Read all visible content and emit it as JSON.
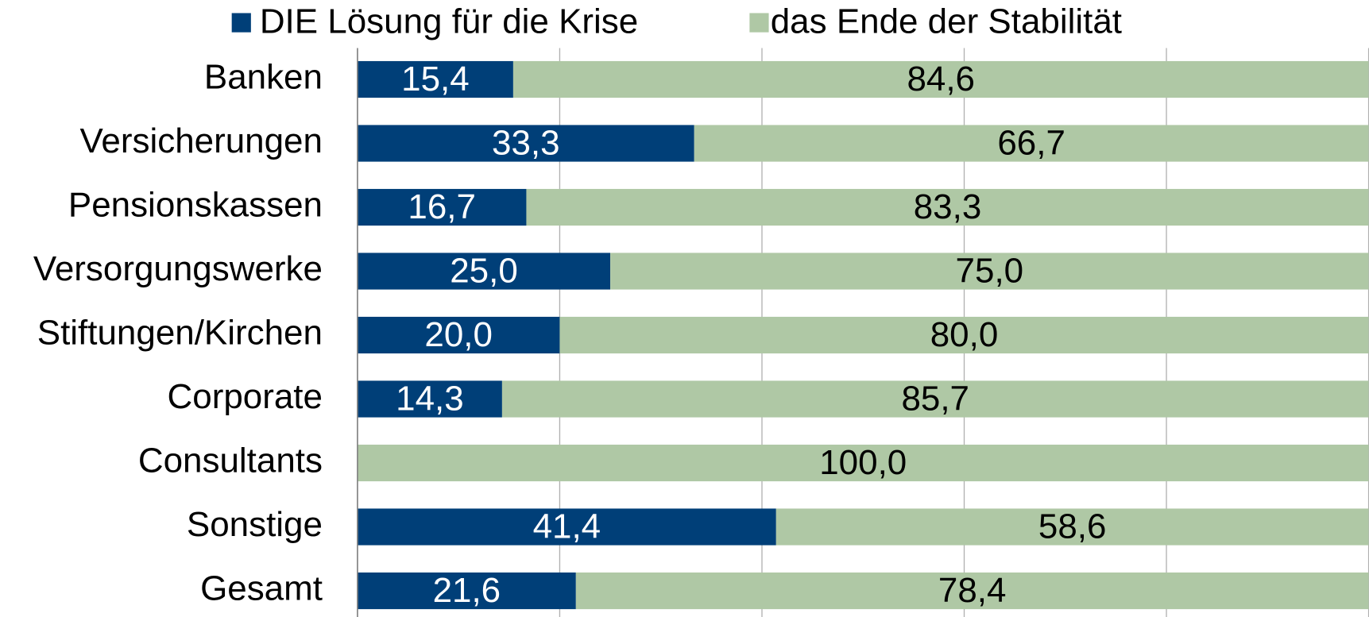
{
  "chart_data": {
    "type": "stacked_barh",
    "categories": [
      "Banken",
      "Versicherungen",
      "Pensionskassen",
      "Versorgungswerke",
      "Stiftungen/Kirchen",
      "Corporate",
      "Consultants",
      "Sonstige",
      "Gesamt"
    ],
    "series": [
      {
        "name": "DIE Lösung für die Krise",
        "color": "#003f78",
        "values": [
          15.4,
          33.3,
          16.7,
          25.0,
          20.0,
          14.3,
          0,
          41.4,
          21.6
        ],
        "value_labels": [
          "15,4",
          "33,3",
          "16,7",
          "25,0",
          "20,0",
          "14,3",
          null,
          "41,4",
          "21,6"
        ]
      },
      {
        "name": "das Ende der Stabilität",
        "color": "#afc8a5",
        "values": [
          84.6,
          66.7,
          83.3,
          75.0,
          80.0,
          85.7,
          100.0,
          58.6,
          78.4
        ],
        "value_labels": [
          "84,6",
          "66,7",
          "83,3",
          "75,0",
          "80,0",
          "85,7",
          "100,0",
          "58,6",
          "78,4"
        ]
      }
    ],
    "xlim": [
      0,
      100
    ],
    "xticks": [
      0,
      20,
      40,
      60,
      80,
      100
    ],
    "grid": true,
    "legend": "top"
  }
}
